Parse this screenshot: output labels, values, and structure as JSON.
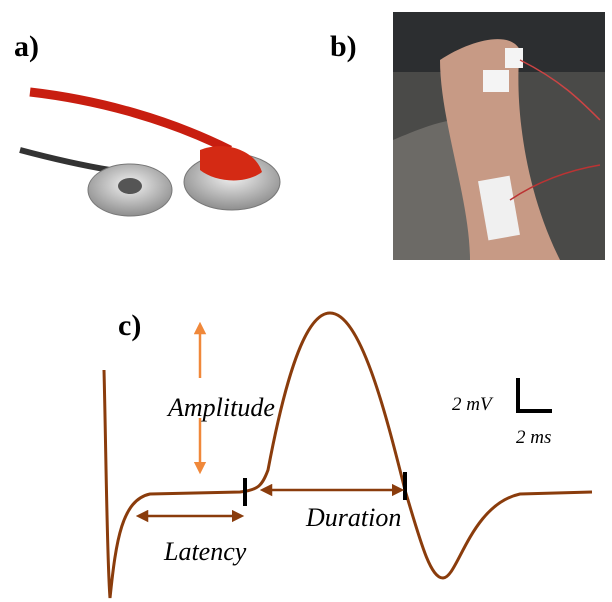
{
  "panels": {
    "a": {
      "label": "a)"
    },
    "b": {
      "label": "b)"
    },
    "c": {
      "label": "c)"
    }
  },
  "annotations": {
    "amplitude": "Amplitude",
    "latency": "Latency",
    "duration": "Duration"
  },
  "scale_bar": {
    "voltage": "2 mV",
    "time": "2 ms"
  }
}
